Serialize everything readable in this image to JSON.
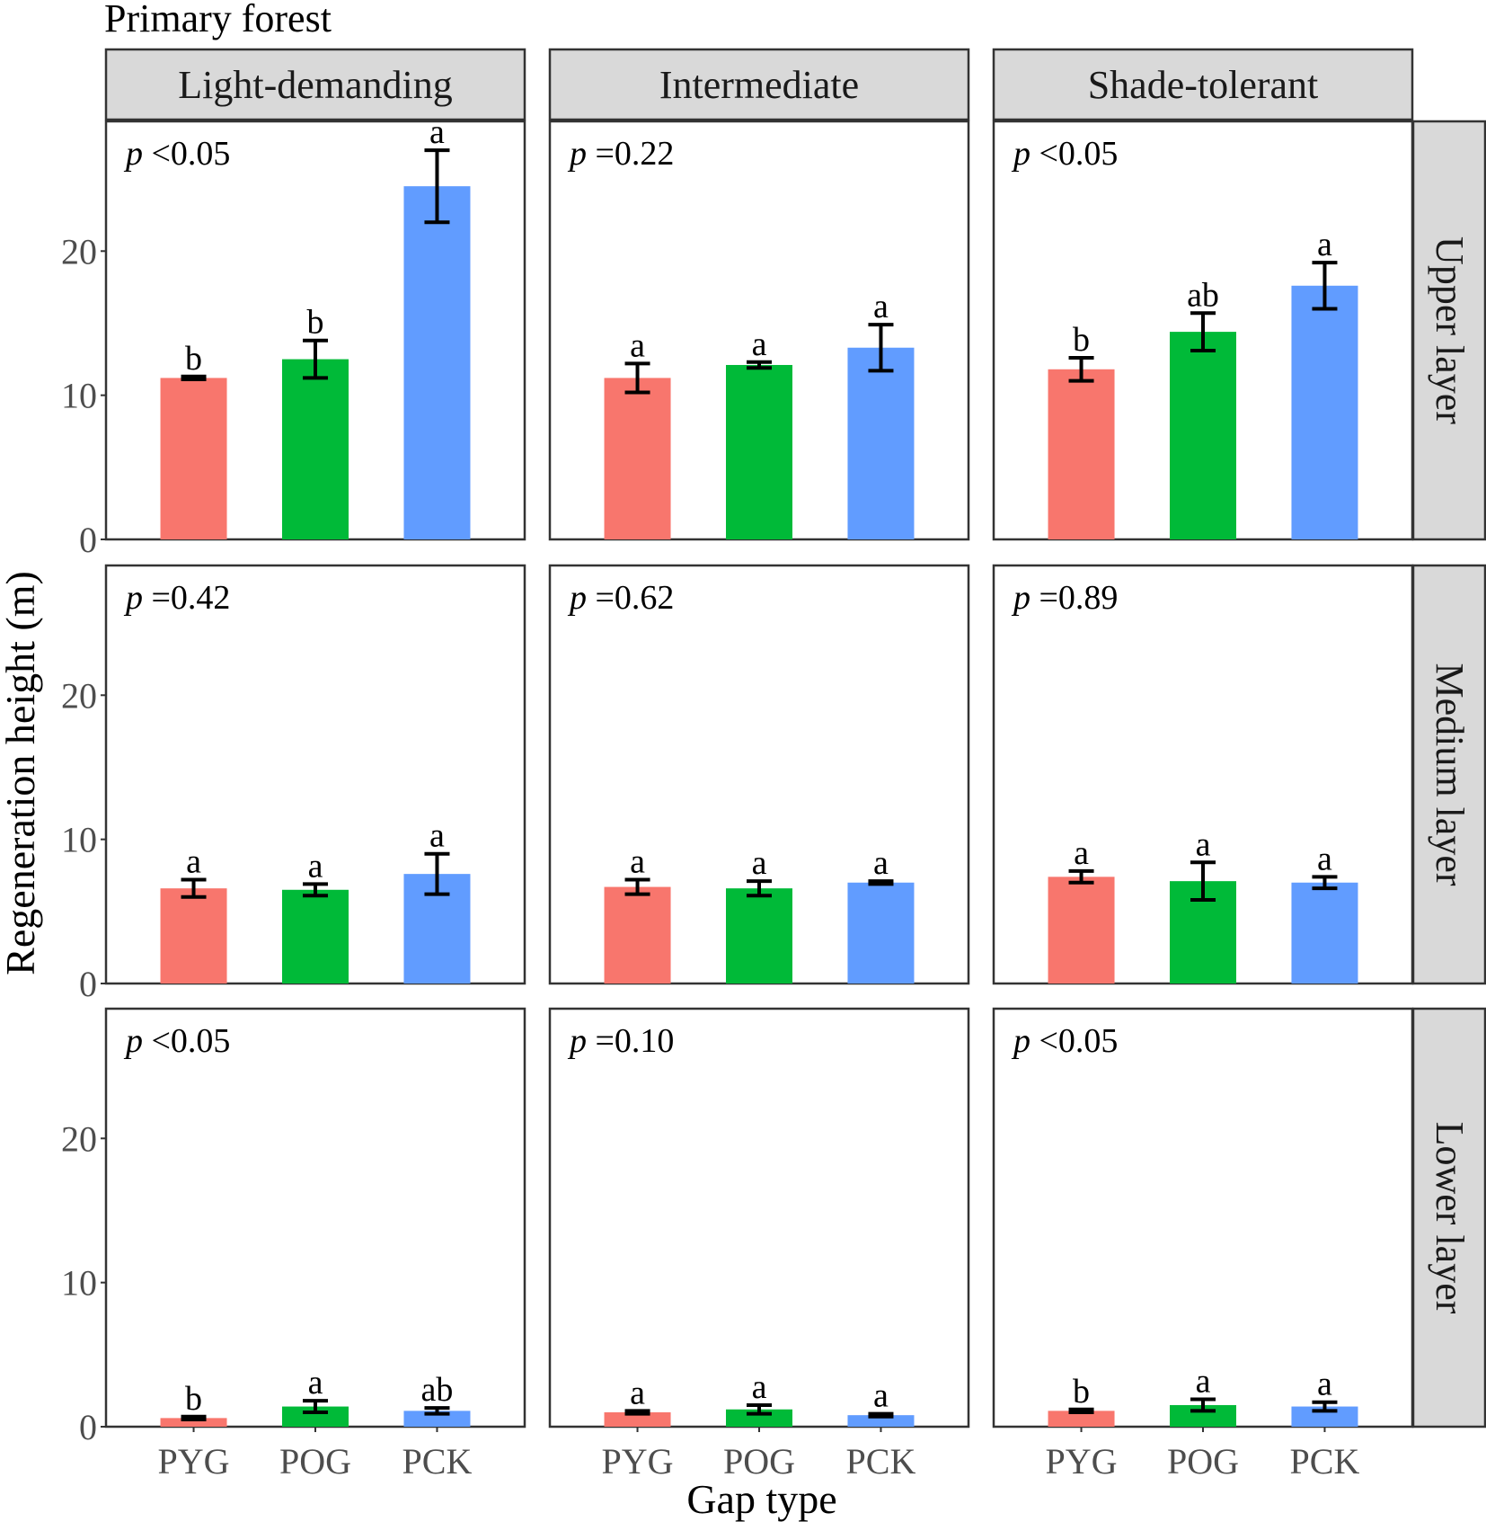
{
  "chart_data": {
    "type": "bar",
    "title": "Primary forest",
    "xlabel": "Gap type",
    "ylabel": "Regeneration height (m)",
    "categories": [
      "PYG",
      "POG",
      "PCK"
    ],
    "colors": {
      "PYG": "#F8766D",
      "POG": "#00BA38",
      "PCK": "#619CFF"
    },
    "ylim": [
      0,
      29
    ],
    "yticks": [
      0,
      10,
      20
    ],
    "columns": [
      "Light-demanding",
      "Intermediate",
      "Shade-tolerant"
    ],
    "rows": [
      "Upper layer",
      "Medium layer",
      "Lower layer"
    ],
    "panels": [
      {
        "column": "Light-demanding",
        "row": "Upper layer",
        "p_label": "p",
        "p_value": "<0.05",
        "values": [
          11.2,
          12.5,
          24.5
        ],
        "se": [
          0.1,
          1.3,
          2.5
        ],
        "letters": [
          "b",
          "b",
          "a"
        ]
      },
      {
        "column": "Intermediate",
        "row": "Upper layer",
        "p_label": "p",
        "p_value": "=0.22",
        "values": [
          11.2,
          12.1,
          13.3
        ],
        "se": [
          1.0,
          0.2,
          1.6
        ],
        "letters": [
          "a",
          "a",
          "a"
        ]
      },
      {
        "column": "Shade-tolerant",
        "row": "Upper layer",
        "p_label": "p",
        "p_value": "<0.05",
        "values": [
          11.8,
          14.4,
          17.6
        ],
        "se": [
          0.8,
          1.3,
          1.6
        ],
        "letters": [
          "b",
          "ab",
          "a"
        ]
      },
      {
        "column": "Light-demanding",
        "row": "Medium layer",
        "p_label": "p",
        "p_value": "=0.42",
        "values": [
          6.6,
          6.5,
          7.6
        ],
        "se": [
          0.6,
          0.4,
          1.4
        ],
        "letters": [
          "a",
          "a",
          "a"
        ]
      },
      {
        "column": "Intermediate",
        "row": "Medium layer",
        "p_label": "p",
        "p_value": "=0.62",
        "values": [
          6.7,
          6.6,
          7.0
        ],
        "se": [
          0.5,
          0.5,
          0.1
        ],
        "letters": [
          "a",
          "a",
          "a"
        ]
      },
      {
        "column": "Shade-tolerant",
        "row": "Medium layer",
        "p_label": "p",
        "p_value": "=0.89",
        "values": [
          7.4,
          7.1,
          7.0
        ],
        "se": [
          0.4,
          1.3,
          0.4
        ],
        "letters": [
          "a",
          "a",
          "a"
        ]
      },
      {
        "column": "Light-demanding",
        "row": "Lower layer",
        "p_label": "p",
        "p_value": "<0.05",
        "values": [
          0.6,
          1.4,
          1.1
        ],
        "se": [
          0.1,
          0.4,
          0.2
        ],
        "letters": [
          "b",
          "a",
          "ab"
        ]
      },
      {
        "column": "Intermediate",
        "row": "Lower layer",
        "p_label": "p",
        "p_value": "=0.10",
        "values": [
          1.0,
          1.2,
          0.8
        ],
        "se": [
          0.1,
          0.3,
          0.1
        ],
        "letters": [
          "a",
          "a",
          "a"
        ]
      },
      {
        "column": "Shade-tolerant",
        "row": "Lower layer",
        "p_label": "p",
        "p_value": "<0.05",
        "values": [
          1.1,
          1.5,
          1.4
        ],
        "se": [
          0.1,
          0.4,
          0.3
        ],
        "letters": [
          "b",
          "a",
          "a"
        ]
      }
    ]
  }
}
